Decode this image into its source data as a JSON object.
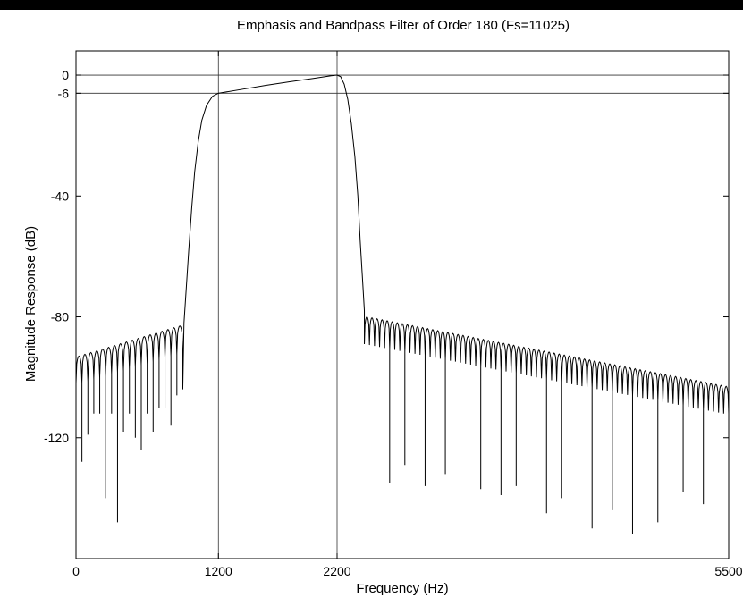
{
  "chart_data": {
    "type": "line",
    "title": "Emphasis and Bandpass Filter of Order 180 (Fs=11025)",
    "xlabel": "Frequency (Hz)",
    "ylabel": "Magnitude Response (dB)",
    "xlim": [
      0,
      5500
    ],
    "ylim": [
      -160,
      8
    ],
    "xticks": [
      0,
      1200,
      2200,
      5500
    ],
    "yticks": [
      0,
      -6,
      -40,
      -80,
      -120
    ],
    "reference_lines": {
      "x": [
        1200,
        2200
      ],
      "y": [
        0,
        -6
      ]
    },
    "grid": false,
    "series": [
      {
        "passband": [
          [
            1200,
            -6
          ],
          [
            1400,
            -4.7
          ],
          [
            1600,
            -3.4
          ],
          [
            1800,
            -2.2
          ],
          [
            2000,
            -1.1
          ],
          [
            2150,
            -0.2
          ],
          [
            2200,
            0
          ]
        ],
        "transition_low": [
          [
            910,
            -82
          ],
          [
            930,
            -70
          ],
          [
            950,
            -58
          ],
          [
            975,
            -44
          ],
          [
            1000,
            -32
          ],
          [
            1030,
            -22
          ],
          [
            1060,
            -15
          ],
          [
            1100,
            -10
          ],
          [
            1150,
            -7
          ],
          [
            1200,
            -6
          ]
        ],
        "transition_high": [
          [
            2200,
            0
          ],
          [
            2230,
            -0.5
          ],
          [
            2260,
            -3
          ],
          [
            2290,
            -8
          ],
          [
            2320,
            -16
          ],
          [
            2350,
            -27
          ],
          [
            2375,
            -40
          ],
          [
            2395,
            -55
          ],
          [
            2415,
            -68
          ],
          [
            2430,
            -78
          ]
        ],
        "stopband_low": {
          "x_start": 0,
          "x_end": 900,
          "lobe_count": 18,
          "peak_start": -93,
          "peak_end": -83,
          "nulls": [
            -128,
            -119,
            -112,
            -112,
            -140,
            -112,
            -148,
            -118,
            -112,
            -120,
            -124,
            -112,
            -118,
            -110,
            -110,
            -116,
            -106,
            -104
          ]
        },
        "stopband_high": {
          "x_start": 2430,
          "x_end": 5500,
          "lobe_count": 72,
          "peak_start": -80,
          "peak_end": -103,
          "deep_nulls": [
            [
              2650,
              -135
            ],
            [
              2750,
              -129
            ],
            [
              2950,
              -136
            ],
            [
              3100,
              -132
            ],
            [
              3400,
              -137
            ],
            [
              3600,
              -139
            ],
            [
              3700,
              -136
            ],
            [
              3950,
              -145
            ],
            [
              4100,
              -140
            ],
            [
              4350,
              -150
            ],
            [
              4500,
              -144
            ],
            [
              4700,
              -152
            ],
            [
              4900,
              -148
            ],
            [
              5100,
              -138
            ],
            [
              5300,
              -142
            ],
            [
              5480,
              -136
            ]
          ]
        }
      }
    ]
  }
}
